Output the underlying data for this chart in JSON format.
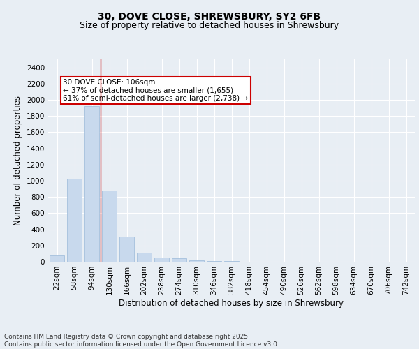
{
  "title": "30, DOVE CLOSE, SHREWSBURY, SY2 6FB",
  "subtitle": "Size of property relative to detached houses in Shrewsbury",
  "xlabel": "Distribution of detached houses by size in Shrewsbury",
  "ylabel": "Number of detached properties",
  "categories": [
    "22sqm",
    "58sqm",
    "94sqm",
    "130sqm",
    "166sqm",
    "202sqm",
    "238sqm",
    "274sqm",
    "310sqm",
    "346sqm",
    "382sqm",
    "418sqm",
    "454sqm",
    "490sqm",
    "526sqm",
    "562sqm",
    "598sqm",
    "634sqm",
    "670sqm",
    "706sqm",
    "742sqm"
  ],
  "values": [
    80,
    1030,
    1920,
    880,
    310,
    110,
    55,
    45,
    20,
    10,
    5,
    2,
    1,
    0,
    0,
    0,
    0,
    0,
    0,
    0,
    0
  ],
  "bar_color": "#c8d9ed",
  "bar_edge_color": "#9ab8d8",
  "bar_edge_width": 0.5,
  "vline_x_idx": 2.5,
  "vline_color": "#cc0000",
  "annotation_text": "30 DOVE CLOSE: 106sqm\n← 37% of detached houses are smaller (1,655)\n61% of semi-detached houses are larger (2,738) →",
  "annotation_box_facecolor": "#ffffff",
  "annotation_box_edgecolor": "#cc0000",
  "ylim": [
    0,
    2500
  ],
  "yticks": [
    0,
    200,
    400,
    600,
    800,
    1000,
    1200,
    1400,
    1600,
    1800,
    2000,
    2200,
    2400
  ],
  "background_color": "#e8eef4",
  "grid_color": "#ffffff",
  "footnote": "Contains HM Land Registry data © Crown copyright and database right 2025.\nContains public sector information licensed under the Open Government Licence v3.0.",
  "title_fontsize": 10,
  "subtitle_fontsize": 9,
  "xlabel_fontsize": 8.5,
  "ylabel_fontsize": 8.5,
  "tick_fontsize": 7.5,
  "annotation_fontsize": 7.5,
  "footnote_fontsize": 6.5
}
